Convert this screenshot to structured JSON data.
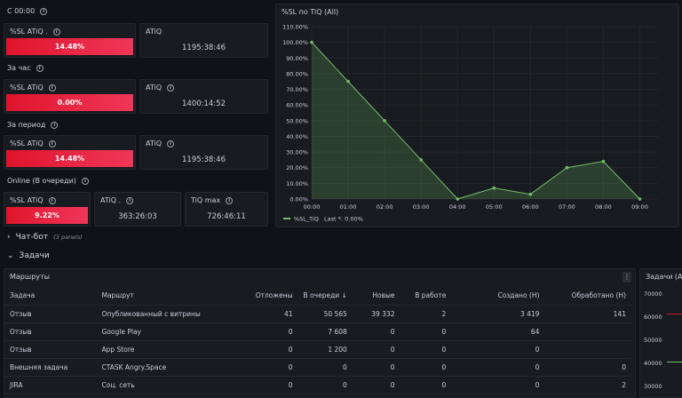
{
  "sections": {
    "since_midnight": "С 00:00",
    "last_hour": "За час",
    "period": "За период",
    "online": "Online (В очереди)"
  },
  "stat1": {
    "sl_label": "%SL ATiQ .",
    "sl_value": "14.48%",
    "atiq_label": "ATiQ",
    "atiq_value": "1195:38:46"
  },
  "stat2": {
    "sl_label": "%SL ATiQ",
    "sl_value": "0.00%",
    "atiq_label": "ATiQ",
    "atiq_value": "1400:14:52"
  },
  "stat3": {
    "sl_label": "%SL ATiQ",
    "sl_value": "14.48%",
    "atiq_label": "ATiQ",
    "atiq_value": "1195:38:46"
  },
  "stat4": {
    "sl_label": "%SL ATiQ",
    "sl_value": "9.22%",
    "atiq_label": "ATiQ .",
    "atiq_value": "363:26:03",
    "max_label": "TiQ max",
    "max_value": "726:46:11"
  },
  "chart_data": {
    "type": "area",
    "title": "%SL по TiQ (All)",
    "x": [
      "00:00",
      "01:00",
      "02:00",
      "03:00",
      "04:00",
      "05:00",
      "06:00",
      "07:00",
      "08:00",
      "09:00"
    ],
    "series": [
      {
        "name": "%SL_TiQ",
        "values": [
          100,
          75,
          50,
          25,
          0,
          7,
          3,
          20,
          24,
          0
        ]
      }
    ],
    "xvals": [
      0,
      1,
      2,
      3,
      4,
      5,
      6,
      7,
      8,
      9
    ],
    "yticks": [
      "0.00%",
      "10.00%",
      "20.00%",
      "30.00%",
      "40.00%",
      "50.00%",
      "60.00%",
      "70.00%",
      "80.00%",
      "90.00%",
      "100.00%",
      "110.00%"
    ],
    "ylim": [
      0,
      110
    ],
    "xlim": [
      0,
      9.5
    ],
    "legend_name": "%SL_TiQ",
    "legend_text": "Last *: 0.00%",
    "color": "#73bf69"
  },
  "rows": {
    "chatbot": "Чат-бот",
    "chatbot_sub": "(3 panels)",
    "tasks": "Задачи"
  },
  "routes": {
    "title": "Маршруты",
    "menu": "⋮",
    "columns": [
      "Задача",
      "Маршрут",
      "Отложены",
      "В очереди ↓",
      "Новые",
      "В работе",
      "Создано (Н)",
      "Обработано (Н)"
    ],
    "rows": [
      [
        "Отзыв",
        "Опубликованный с витрины",
        "41",
        "50 565",
        "39 332",
        "2",
        "3 419",
        "141"
      ],
      [
        "Отзыв",
        "Google Play",
        "0",
        "7 608",
        "0",
        "0",
        "64",
        ""
      ],
      [
        "Отзыв",
        "App Store",
        "0",
        "1 200",
        "0",
        "0",
        "0",
        ""
      ],
      [
        "Внешняя задача",
        "CTASK Angry.Space",
        "0",
        "0",
        "0",
        "0",
        "0",
        "0"
      ],
      [
        "JIRA",
        "Соц. сеть",
        "0",
        "0",
        "0",
        "0",
        "0",
        "2"
      ]
    ]
  },
  "tasks_panel": {
    "title": "Задачи (All)",
    "yticks": [
      "70000",
      "60000",
      "50000",
      "40000",
      "30000"
    ]
  }
}
